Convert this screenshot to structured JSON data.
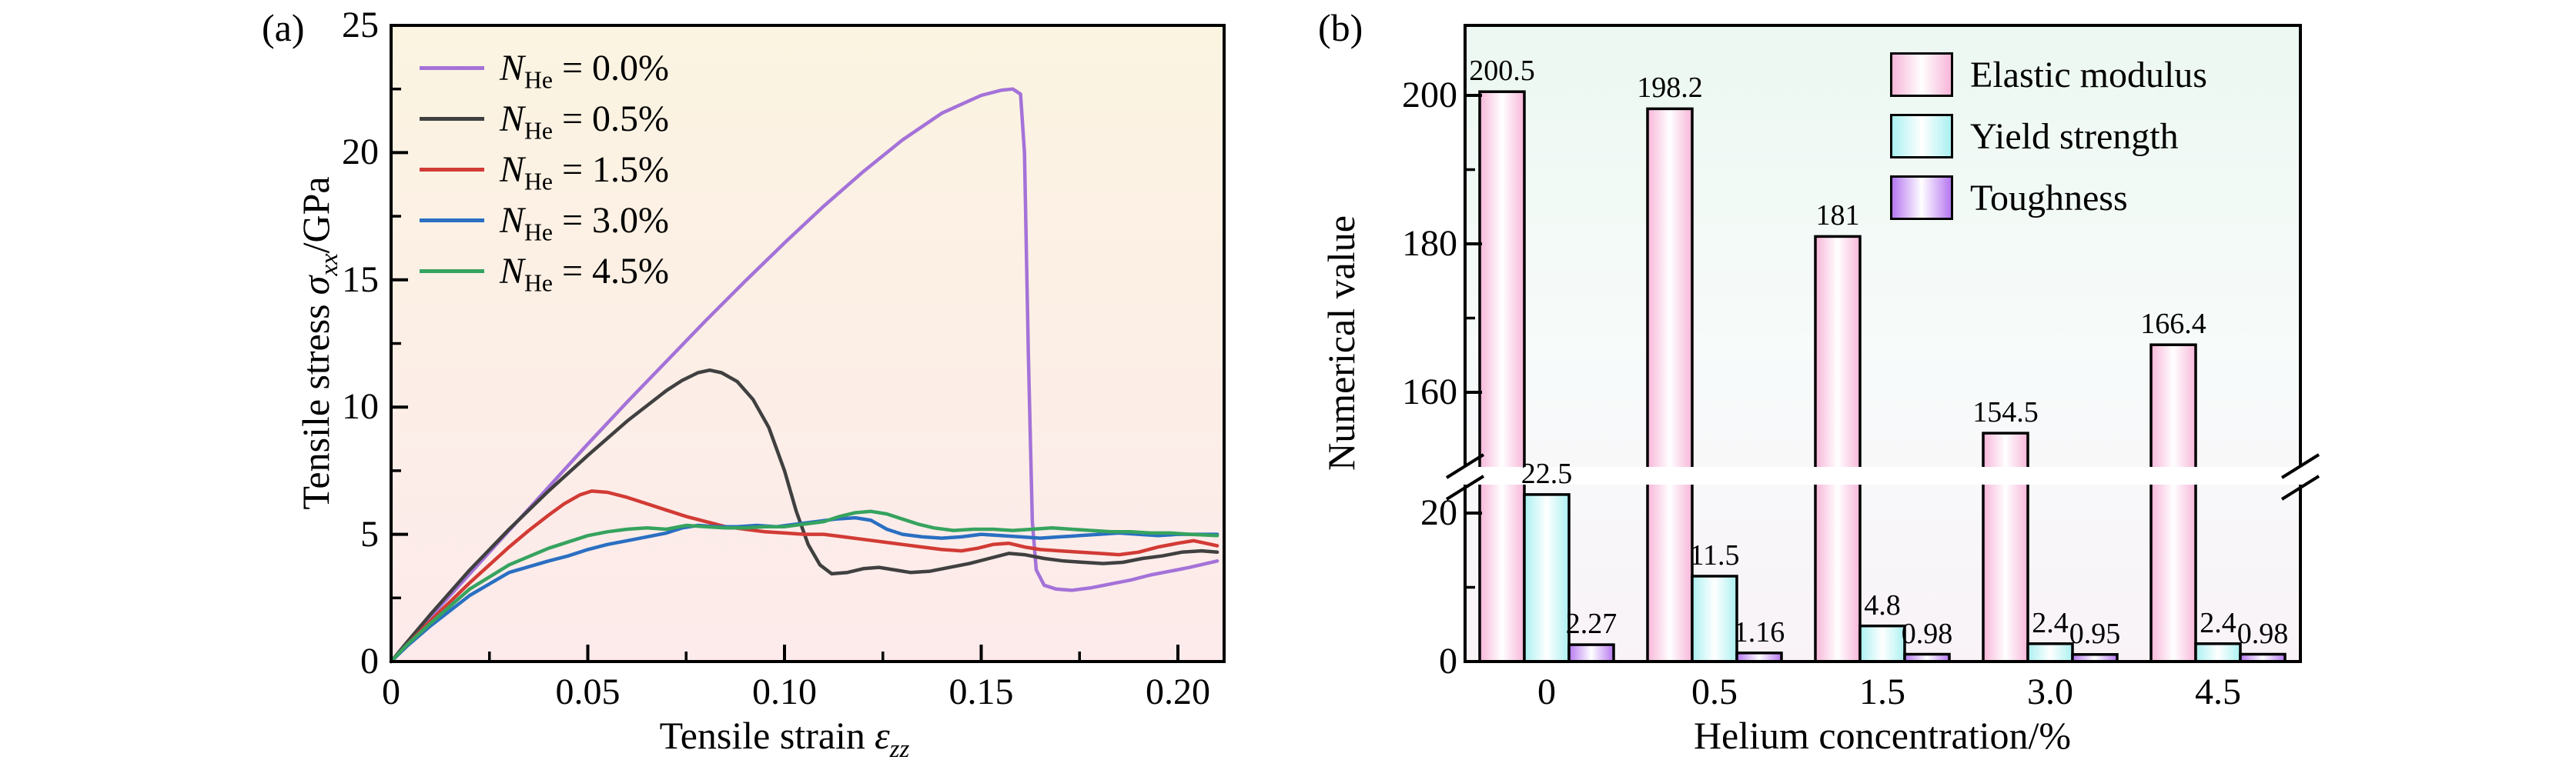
{
  "panels": {
    "a": {
      "tag": "(a)",
      "xlabel": {
        "text": "Tensile strain",
        "symbol": "ε",
        "sub": "zz"
      },
      "ylabel": {
        "text": "Tensile stress",
        "symbol": "σ",
        "sub": "xx",
        "unit": "/GPa"
      },
      "x_ticks": [
        {
          "label": "0",
          "value": 0
        },
        {
          "label": "0.05",
          "value": 0.05
        },
        {
          "label": "0.10",
          "value": 0.1
        },
        {
          "label": "0.15",
          "value": 0.15
        },
        {
          "label": "0.20",
          "value": 0.2
        }
      ],
      "x_minor_ticks": [
        0.025,
        0.075,
        0.125,
        0.175
      ],
      "y_ticks": [
        {
          "label": "0",
          "value": 0
        },
        {
          "label": "5",
          "value": 5
        },
        {
          "label": "10",
          "value": 10
        },
        {
          "label": "15",
          "value": 15
        },
        {
          "label": "20",
          "value": 20
        },
        {
          "label": "25",
          "value": 25
        }
      ],
      "y_minor_ticks": [
        2.5,
        7.5,
        12.5,
        17.5,
        22.5
      ],
      "legend": [
        {
          "var": "N",
          "sub": "He",
          "rest": "= 0.0%",
          "color": "#a472d8"
        },
        {
          "var": "N",
          "sub": "He",
          "rest": "= 0.5%",
          "color": "#404040"
        },
        {
          "var": "N",
          "sub": "He",
          "rest": "= 1.5%",
          "color": "#d23b35"
        },
        {
          "var": "N",
          "sub": "He",
          "rest": "= 3.0%",
          "color": "#2a6fc2"
        },
        {
          "var": "N",
          "sub": "He",
          "rest": "= 4.5%",
          "color": "#36a35f"
        }
      ],
      "bg_top": "#fbf4e1",
      "bg_mid": "#fcefe6",
      "bg_bottom": "#fdeaeb"
    },
    "b": {
      "tag": "(b)",
      "xlabel": "Helium concentration/%",
      "ylabel": "Numerical value",
      "x_ticks": [
        "0",
        "0.5",
        "1.5",
        "3.0",
        "4.5"
      ],
      "y_ticks": [
        {
          "label": "0",
          "value": 0
        },
        {
          "label": "20",
          "value": 20
        },
        {
          "label": "160",
          "value": 160
        },
        {
          "label": "180",
          "value": 180
        },
        {
          "label": "200",
          "value": 200
        }
      ],
      "y_minor_ticks": [
        10,
        170,
        190
      ],
      "legend": [
        {
          "label": "Elastic modulus",
          "color": "#f7b6d8"
        },
        {
          "label": "Yield strength",
          "color": "#abf0f1"
        },
        {
          "label": "Toughness",
          "color": "#b678f0"
        }
      ],
      "bg_top": "#ecf8f1",
      "bg_mid": "#f7fbfa",
      "bg_bottom": "#f9f3f8"
    }
  },
  "chart_data": [
    {
      "type": "line",
      "title": "",
      "xlabel": "Tensile strain ε_zz",
      "ylabel": "Tensile stress σ_xx/GPa",
      "xlim": [
        0,
        0.212
      ],
      "ylim": [
        0,
        25
      ],
      "grid": false,
      "legend_position": "upper left",
      "series": [
        {
          "name": "N_He = 0.0%",
          "color": "#a472d8",
          "points": [
            [
              0,
              0
            ],
            [
              0.004,
              0.7
            ],
            [
              0.01,
              1.75
            ],
            [
              0.02,
              3.45
            ],
            [
              0.03,
              5.15
            ],
            [
              0.04,
              6.85
            ],
            [
              0.05,
              8.55
            ],
            [
              0.06,
              10.2
            ],
            [
              0.07,
              11.8
            ],
            [
              0.08,
              13.4
            ],
            [
              0.09,
              14.95
            ],
            [
              0.1,
              16.45
            ],
            [
              0.11,
              17.9
            ],
            [
              0.12,
              19.25
            ],
            [
              0.13,
              20.5
            ],
            [
              0.14,
              21.55
            ],
            [
              0.15,
              22.25
            ],
            [
              0.155,
              22.45
            ],
            [
              0.158,
              22.5
            ],
            [
              0.16,
              22.3
            ],
            [
              0.161,
              20.0
            ],
            [
              0.162,
              12.0
            ],
            [
              0.163,
              5.5
            ],
            [
              0.164,
              3.6
            ],
            [
              0.166,
              3.0
            ],
            [
              0.169,
              2.85
            ],
            [
              0.173,
              2.8
            ],
            [
              0.178,
              2.9
            ],
            [
              0.183,
              3.05
            ],
            [
              0.188,
              3.2
            ],
            [
              0.193,
              3.4
            ],
            [
              0.198,
              3.55
            ],
            [
              0.203,
              3.7
            ],
            [
              0.21,
              3.95
            ]
          ]
        },
        {
          "name": "N_He = 0.5%",
          "color": "#404040",
          "points": [
            [
              0,
              0
            ],
            [
              0.004,
              0.75
            ],
            [
              0.01,
              1.85
            ],
            [
              0.02,
              3.6
            ],
            [
              0.03,
              5.2
            ],
            [
              0.04,
              6.7
            ],
            [
              0.05,
              8.1
            ],
            [
              0.06,
              9.45
            ],
            [
              0.065,
              10.05
            ],
            [
              0.07,
              10.65
            ],
            [
              0.074,
              11.05
            ],
            [
              0.078,
              11.35
            ],
            [
              0.081,
              11.45
            ],
            [
              0.084,
              11.35
            ],
            [
              0.088,
              11.0
            ],
            [
              0.092,
              10.3
            ],
            [
              0.096,
              9.2
            ],
            [
              0.1,
              7.5
            ],
            [
              0.103,
              5.9
            ],
            [
              0.106,
              4.6
            ],
            [
              0.109,
              3.8
            ],
            [
              0.112,
              3.45
            ],
            [
              0.116,
              3.5
            ],
            [
              0.12,
              3.65
            ],
            [
              0.124,
              3.7
            ],
            [
              0.128,
              3.6
            ],
            [
              0.132,
              3.5
            ],
            [
              0.137,
              3.55
            ],
            [
              0.142,
              3.7
            ],
            [
              0.147,
              3.85
            ],
            [
              0.152,
              4.05
            ],
            [
              0.157,
              4.25
            ],
            [
              0.161,
              4.2
            ],
            [
              0.166,
              4.05
            ],
            [
              0.171,
              3.95
            ],
            [
              0.176,
              3.9
            ],
            [
              0.181,
              3.85
            ],
            [
              0.186,
              3.9
            ],
            [
              0.191,
              4.05
            ],
            [
              0.196,
              4.15
            ],
            [
              0.201,
              4.3
            ],
            [
              0.206,
              4.35
            ],
            [
              0.21,
              4.3
            ]
          ]
        },
        {
          "name": "N_He = 1.5%",
          "color": "#d23b35",
          "points": [
            [
              0,
              0
            ],
            [
              0.004,
              0.65
            ],
            [
              0.01,
              1.6
            ],
            [
              0.02,
              3.1
            ],
            [
              0.03,
              4.5
            ],
            [
              0.035,
              5.15
            ],
            [
              0.04,
              5.75
            ],
            [
              0.044,
              6.2
            ],
            [
              0.048,
              6.55
            ],
            [
              0.051,
              6.7
            ],
            [
              0.055,
              6.65
            ],
            [
              0.06,
              6.45
            ],
            [
              0.065,
              6.2
            ],
            [
              0.07,
              5.95
            ],
            [
              0.075,
              5.7
            ],
            [
              0.08,
              5.5
            ],
            [
              0.085,
              5.3
            ],
            [
              0.09,
              5.2
            ],
            [
              0.095,
              5.1
            ],
            [
              0.1,
              5.05
            ],
            [
              0.105,
              5.0
            ],
            [
              0.11,
              5.0
            ],
            [
              0.115,
              4.9
            ],
            [
              0.12,
              4.8
            ],
            [
              0.125,
              4.7
            ],
            [
              0.13,
              4.6
            ],
            [
              0.135,
              4.5
            ],
            [
              0.14,
              4.4
            ],
            [
              0.145,
              4.35
            ],
            [
              0.149,
              4.45
            ],
            [
              0.153,
              4.6
            ],
            [
              0.157,
              4.65
            ],
            [
              0.161,
              4.5
            ],
            [
              0.165,
              4.4
            ],
            [
              0.17,
              4.35
            ],
            [
              0.175,
              4.3
            ],
            [
              0.18,
              4.25
            ],
            [
              0.185,
              4.2
            ],
            [
              0.19,
              4.3
            ],
            [
              0.195,
              4.5
            ],
            [
              0.2,
              4.65
            ],
            [
              0.204,
              4.75
            ],
            [
              0.207,
              4.65
            ],
            [
              0.21,
              4.55
            ]
          ]
        },
        {
          "name": "N_He = 3.0%",
          "color": "#2a6fc2",
          "points": [
            [
              0,
              0
            ],
            [
              0.004,
              0.6
            ],
            [
              0.01,
              1.4
            ],
            [
              0.02,
              2.6
            ],
            [
              0.03,
              3.5
            ],
            [
              0.04,
              3.95
            ],
            [
              0.045,
              4.15
            ],
            [
              0.05,
              4.4
            ],
            [
              0.055,
              4.6
            ],
            [
              0.06,
              4.75
            ],
            [
              0.065,
              4.9
            ],
            [
              0.07,
              5.05
            ],
            [
              0.074,
              5.25
            ],
            [
              0.078,
              5.35
            ],
            [
              0.083,
              5.3
            ],
            [
              0.088,
              5.3
            ],
            [
              0.093,
              5.35
            ],
            [
              0.098,
              5.3
            ],
            [
              0.103,
              5.4
            ],
            [
              0.108,
              5.5
            ],
            [
              0.113,
              5.6
            ],
            [
              0.118,
              5.65
            ],
            [
              0.122,
              5.55
            ],
            [
              0.126,
              5.2
            ],
            [
              0.13,
              5.0
            ],
            [
              0.135,
              4.9
            ],
            [
              0.14,
              4.85
            ],
            [
              0.145,
              4.9
            ],
            [
              0.15,
              5.0
            ],
            [
              0.155,
              4.95
            ],
            [
              0.16,
              4.9
            ],
            [
              0.165,
              4.85
            ],
            [
              0.17,
              4.9
            ],
            [
              0.175,
              4.95
            ],
            [
              0.18,
              5.0
            ],
            [
              0.185,
              5.05
            ],
            [
              0.19,
              5.0
            ],
            [
              0.195,
              4.95
            ],
            [
              0.2,
              5.0
            ],
            [
              0.205,
              5.0
            ],
            [
              0.21,
              5.0
            ]
          ]
        },
        {
          "name": "N_He = 4.5%",
          "color": "#36a35f",
          "points": [
            [
              0,
              0
            ],
            [
              0.004,
              0.65
            ],
            [
              0.01,
              1.5
            ],
            [
              0.02,
              2.85
            ],
            [
              0.03,
              3.8
            ],
            [
              0.04,
              4.45
            ],
            [
              0.05,
              4.95
            ],
            [
              0.055,
              5.1
            ],
            [
              0.06,
              5.2
            ],
            [
              0.065,
              5.25
            ],
            [
              0.07,
              5.2
            ],
            [
              0.075,
              5.35
            ],
            [
              0.08,
              5.3
            ],
            [
              0.085,
              5.25
            ],
            [
              0.09,
              5.25
            ],
            [
              0.095,
              5.3
            ],
            [
              0.1,
              5.3
            ],
            [
              0.105,
              5.4
            ],
            [
              0.11,
              5.5
            ],
            [
              0.114,
              5.7
            ],
            [
              0.118,
              5.85
            ],
            [
              0.122,
              5.9
            ],
            [
              0.126,
              5.8
            ],
            [
              0.13,
              5.6
            ],
            [
              0.134,
              5.4
            ],
            [
              0.138,
              5.25
            ],
            [
              0.143,
              5.15
            ],
            [
              0.148,
              5.2
            ],
            [
              0.153,
              5.2
            ],
            [
              0.158,
              5.15
            ],
            [
              0.163,
              5.2
            ],
            [
              0.168,
              5.25
            ],
            [
              0.173,
              5.2
            ],
            [
              0.178,
              5.15
            ],
            [
              0.183,
              5.1
            ],
            [
              0.188,
              5.1
            ],
            [
              0.193,
              5.05
            ],
            [
              0.198,
              5.05
            ],
            [
              0.203,
              5.0
            ],
            [
              0.21,
              4.95
            ]
          ]
        }
      ]
    },
    {
      "type": "bar",
      "title": "",
      "xlabel": "Helium concentration/%",
      "ylabel": "Numerical value",
      "categories": [
        "0",
        "0.5",
        "1.5",
        "3.0",
        "4.5"
      ],
      "y_ticks": [
        0,
        20,
        160,
        180,
        200
      ],
      "axis_break": {
        "from": 24,
        "to": 150
      },
      "grid": false,
      "legend_position": "upper right",
      "series": [
        {
          "name": "Elastic modulus",
          "color": "#f7b6d8",
          "values": [
            200.5,
            198.2,
            181,
            154.5,
            166.4
          ],
          "labels": [
            "200.5",
            "198.2",
            "181",
            "154.5",
            "166.4"
          ]
        },
        {
          "name": "Yield strength",
          "color": "#abf0f1",
          "values": [
            22.5,
            11.5,
            4.8,
            2.4,
            2.4
          ],
          "labels": [
            "22.5",
            "11.5",
            "4.8",
            "2.4",
            "2.4"
          ]
        },
        {
          "name": "Toughness",
          "color": "#b678f0",
          "values": [
            2.27,
            1.16,
            0.98,
            0.95,
            0.98
          ],
          "labels": [
            "2.27",
            "1.16",
            "0.98",
            "0.95",
            "0.98"
          ]
        }
      ]
    }
  ]
}
